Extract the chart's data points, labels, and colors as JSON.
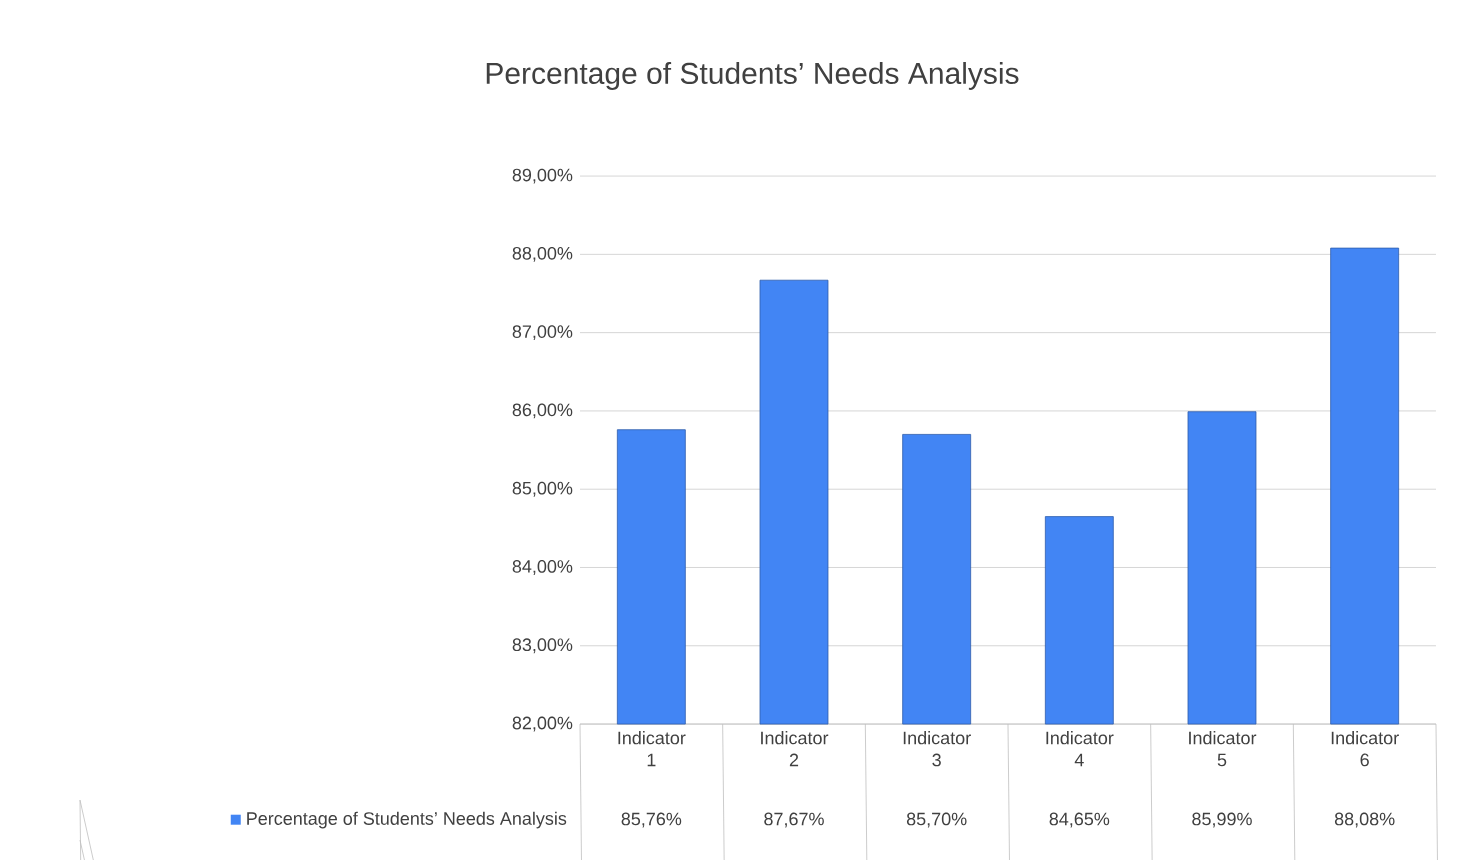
{
  "chart_data": {
    "type": "bar",
    "title": "Percentage of Students’ Needs Analysis",
    "categories": [
      "Indicator 1",
      "Indicator 2",
      "Indicator 3",
      "Indicator 4",
      "Indicator 5",
      "Indicator 6"
    ],
    "series": [
      {
        "name": "Percentage of Students’ Needs Analysis",
        "color": "#4285f4",
        "values": [
          85.76,
          87.67,
          85.7,
          84.65,
          85.99,
          88.08
        ],
        "value_labels": [
          "85,76%",
          "87,67%",
          "85,70%",
          "84,65%",
          "85,99%",
          "88,08%"
        ]
      }
    ],
    "ylim": [
      82,
      89
    ],
    "yticks": [
      {
        "value": 82,
        "label": "82,00%"
      },
      {
        "value": 83,
        "label": "83,00%"
      },
      {
        "value": 84,
        "label": "84,00%"
      },
      {
        "value": 85,
        "label": "85,00%"
      },
      {
        "value": 86,
        "label": "86,00%"
      },
      {
        "value": 87,
        "label": "87,00%"
      },
      {
        "value": 88,
        "label": "88,00%"
      },
      {
        "value": 89,
        "label": "89,00%"
      }
    ],
    "grid": "y",
    "legend": "bottom"
  }
}
